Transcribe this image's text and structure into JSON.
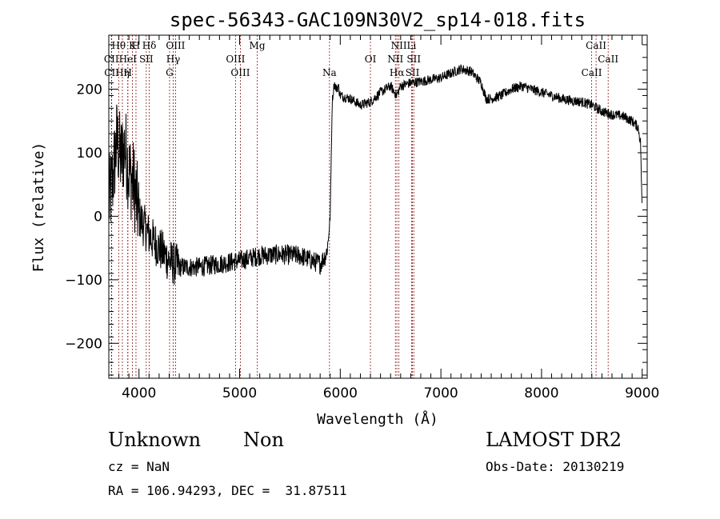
{
  "chart_data": {
    "type": "line",
    "title": "spec-56343-GAC109N30V2_sp14-018.fits",
    "xlabel": "Wavelength (Å)",
    "ylabel": "Flux (relative)",
    "xlim": [
      3700,
      9050
    ],
    "ylim": [
      -255,
      285
    ],
    "x_ticks": [
      4000,
      5000,
      6000,
      7000,
      8000,
      9000
    ],
    "x_tick_labels": [
      "4000",
      "5000",
      "6000",
      "7000",
      "8000",
      "9000"
    ],
    "y_ticks": [
      -200,
      -100,
      0,
      100,
      200
    ],
    "y_tick_labels": [
      "−200",
      "−100",
      "0",
      "100",
      "200"
    ],
    "grid": false,
    "line_color": "#000000",
    "marker_line_color": "#8b1a1a",
    "spectrum_anchors": {
      "x": [
        3700,
        3740,
        3780,
        3820,
        3860,
        3900,
        3950,
        4000,
        4100,
        4200,
        4300,
        4400,
        4600,
        4800,
        5000,
        5200,
        5400,
        5600,
        5800,
        5860,
        5880,
        5900,
        5920,
        5940,
        5960,
        5980,
        6000,
        6100,
        6200,
        6300,
        6400,
        6500,
        6560,
        6600,
        6700,
        6800,
        6900,
        7000,
        7100,
        7200,
        7300,
        7400,
        7450,
        7500,
        7600,
        7700,
        7800,
        7900,
        8000,
        8100,
        8200,
        8300,
        8400,
        8500,
        8600,
        8700,
        8800,
        8900,
        8960,
        8985,
        9000
      ],
      "y": [
        20,
        60,
        120,
        90,
        110,
        70,
        50,
        0,
        -30,
        -50,
        -70,
        -80,
        -80,
        -75,
        -70,
        -62,
        -60,
        -62,
        -75,
        -60,
        -40,
        0,
        180,
        210,
        200,
        205,
        190,
        185,
        175,
        180,
        195,
        205,
        190,
        205,
        210,
        212,
        215,
        218,
        225,
        232,
        228,
        210,
        185,
        185,
        190,
        200,
        205,
        200,
        195,
        190,
        185,
        182,
        180,
        175,
        165,
        160,
        158,
        150,
        140,
        115,
        0
      ]
    },
    "spectral_lines": [
      {
        "label": "Hθ",
        "wavelength": 3798
      },
      {
        "label": "H",
        "wavelength": 3970
      },
      {
        "label": "K",
        "wavelength": 3934
      },
      {
        "label": "Hδ",
        "wavelength": 4102
      },
      {
        "label": "OIII",
        "wavelength": 4363
      },
      {
        "label": "Mg",
        "wavelength": 5175
      },
      {
        "label": "NII",
        "wavelength": 6583
      },
      {
        "label": "Li",
        "wavelength": 6708
      },
      {
        "label": "CaII",
        "wavelength": 8542
      },
      {
        "label": "CII",
        "wavelength": 3726
      },
      {
        "label": "HeI",
        "wavelength": 3889
      },
      {
        "label": "SII",
        "wavelength": 4072
      },
      {
        "label": "Hγ",
        "wavelength": 4340
      },
      {
        "label": "OIII",
        "wavelength": 4959
      },
      {
        "label": "OI",
        "wavelength": 6300
      },
      {
        "label": "NII",
        "wavelength": 6548
      },
      {
        "label": "SII",
        "wavelength": 6731
      },
      {
        "label": "CaII",
        "wavelength": 8662
      },
      {
        "label": "CII",
        "wavelength": 3729
      },
      {
        "label": "Hη",
        "wavelength": 3835
      },
      {
        "label": "H",
        "wavelength": 3889
      },
      {
        "label": "G",
        "wavelength": 4304
      },
      {
        "label": "OIII",
        "wavelength": 5007
      },
      {
        "label": "Na",
        "wavelength": 5893
      },
      {
        "label": "Hα",
        "wavelength": 6563
      },
      {
        "label": "SII",
        "wavelength": 6717
      },
      {
        "label": "CaII",
        "wavelength": 8498
      }
    ]
  },
  "info": {
    "class": "Unknown",
    "subclass": "Non",
    "survey": "LAMOST DR2",
    "cz": "cz = NaN",
    "obs_date": "Obs-Date: 20130219",
    "coords": "RA = 106.94293, DEC =  31.87511"
  }
}
